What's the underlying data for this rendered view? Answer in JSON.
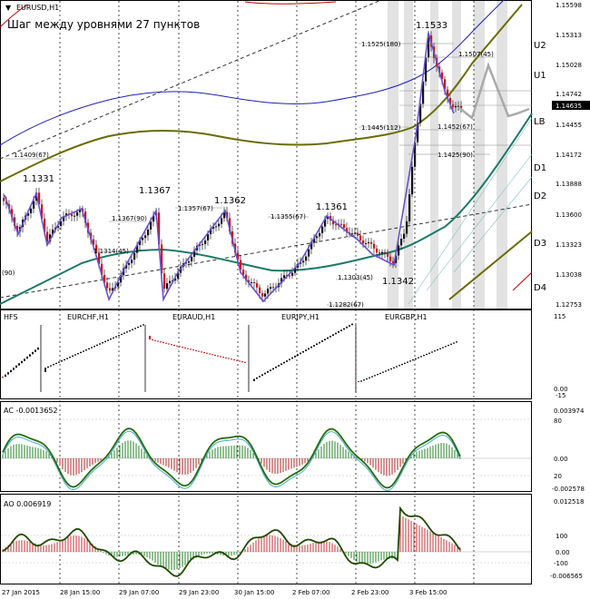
{
  "window": {
    "symbol_title": "EURUSD,H1",
    "subtitle": "Шаг между уровнями 27 пунктов"
  },
  "price_axis": [
    "1.15598",
    "1.15313",
    "1.15028",
    "1.14742",
    "1.14455",
    "1.14172",
    "1.13888",
    "1.13600",
    "1.13323",
    "1.13038",
    "1.12753"
  ],
  "current_price": "1.14635",
  "levels": [
    "U2",
    "U1",
    "LB",
    "D1",
    "D2",
    "D3",
    "D4"
  ],
  "swing_labels": [
    "1.1331",
    "1.1367",
    "1.1362",
    "1.1361",
    "1.1342",
    "1.1533"
  ],
  "level_notes": [
    "1.1409(67)",
    "1.1367(90)",
    "1.1357(67)",
    "1.1314(45)",
    "1.1355(67)",
    "1.1303(45)",
    "1.1282(67)",
    "1.1525(180)",
    "1.1507(45)",
    "1.1445(112)",
    "1.1452(67)",
    "1.1425(90)",
    "(90)"
  ],
  "hfs_panel": {
    "name": "HFS",
    "pairs": [
      "EURCHF,H1",
      "EURAUD,H1",
      "EURJPY,H1",
      "EURGBP,H1"
    ],
    "axis": [
      "115",
      "0.00",
      "-15"
    ]
  },
  "ac_panel": {
    "name": "AC -0.0013652",
    "axis": [
      "0.003974",
      "80",
      "0.00",
      "20",
      "-0.002578"
    ]
  },
  "ao_panel": {
    "name": "AO 0.006919",
    "axis": [
      "0.012518",
      "100",
      "0.00",
      "-100",
      "-0.006565"
    ]
  },
  "time_axis": [
    "27 Jan 2015",
    "28 Jan 15:00",
    "29 Jan 07:00",
    "29 Jan 23:00",
    "30 Jan 15:00",
    "2 Feb 07:00",
    "2 Feb 23:00",
    "3 Feb 15:00"
  ]
}
